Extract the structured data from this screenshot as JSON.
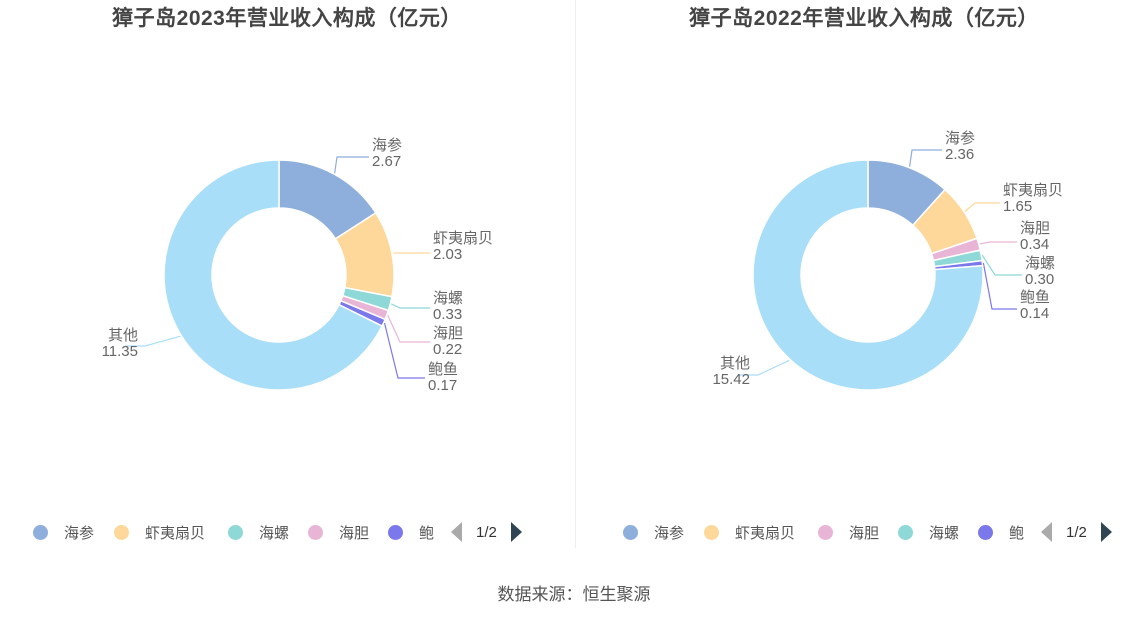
{
  "source": "数据来源：恒生聚源",
  "colors": {
    "海参": "#8eaedc",
    "虾夷扇贝": "#fdd89a",
    "海螺": "#8ed8d8",
    "海胆": "#e9b5d7",
    "鲍鱼": "#7b78ec",
    "其他": "#a9def9"
  },
  "chart_data": [
    {
      "type": "pie",
      "title": "獐子岛2023年营业收入构成（亿元）",
      "slices": [
        {
          "name": "海参",
          "value": 2.67,
          "label": "2.67"
        },
        {
          "name": "虾夷扇贝",
          "value": 2.03,
          "label": "2.03"
        },
        {
          "name": "海螺",
          "value": 0.33,
          "label": "0.33"
        },
        {
          "name": "海胆",
          "value": 0.22,
          "label": "0.22"
        },
        {
          "name": "鲍鱼",
          "value": 0.17,
          "label": "0.17"
        },
        {
          "name": "其他",
          "value": 11.35,
          "label": "11.35"
        }
      ],
      "legend": {
        "items": [
          "海参",
          "虾夷扇贝",
          "海螺",
          "海胆",
          "鲍"
        ],
        "page": "1/2",
        "placement": "bottom"
      }
    },
    {
      "type": "pie",
      "title": "獐子岛2022年营业收入构成（亿元）",
      "slices": [
        {
          "name": "海参",
          "value": 2.36,
          "label": "2.36"
        },
        {
          "name": "虾夷扇贝",
          "value": 1.65,
          "label": "1.65"
        },
        {
          "name": "海胆",
          "value": 0.34,
          "label": "0.34"
        },
        {
          "name": "海螺",
          "value": 0.3,
          "label": "0.30"
        },
        {
          "name": "鲍鱼",
          "value": 0.14,
          "label": "0.14"
        },
        {
          "name": "其他",
          "value": 15.42,
          "label": "15.42"
        }
      ],
      "legend": {
        "items": [
          "海参",
          "虾夷扇贝",
          "海胆",
          "海螺",
          "鲍"
        ],
        "page": "1/2",
        "placement": "bottom"
      }
    }
  ]
}
